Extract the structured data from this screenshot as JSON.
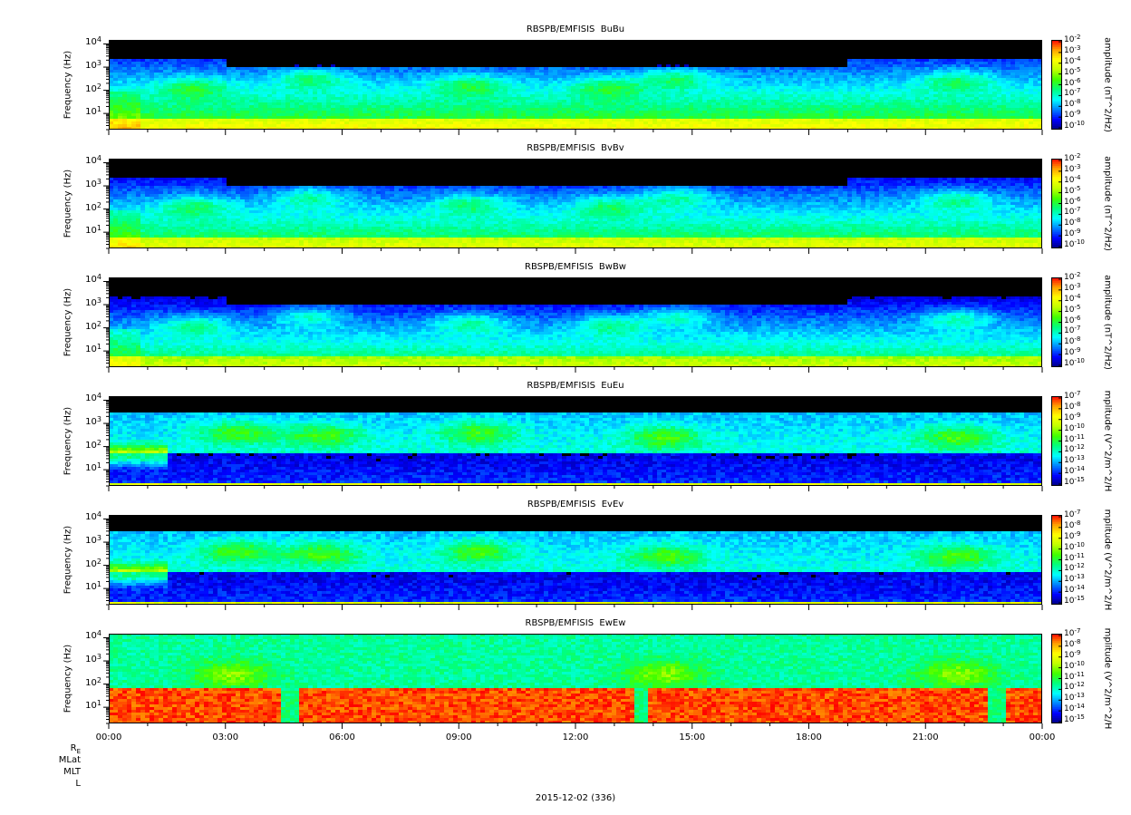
{
  "chart_data": [
    {
      "type": "heatmap",
      "title": "RBSPB/EMFISIS  BuBu",
      "ylabel": "Frequency (Hz)",
      "yscale": "log",
      "ylim": [
        2,
        15000
      ],
      "yticks": [
        {
          "base": "10",
          "exp": "1"
        },
        {
          "base": "10",
          "exp": "2"
        },
        {
          "base": "10",
          "exp": "3"
        },
        {
          "base": "10",
          "exp": "4"
        }
      ],
      "zlabel": "amplitude (nT^2/Hz)",
      "zscale": "log",
      "zticks": [
        "-2",
        "-3",
        "-4",
        "-5",
        "-6",
        "-7",
        "-8",
        "-9",
        "-10"
      ],
      "zlim_exp": [
        -10,
        -2
      ]
    },
    {
      "type": "heatmap",
      "title": "RBSPB/EMFISIS  BvBv",
      "ylabel": "Frequency (Hz)",
      "yscale": "log",
      "ylim": [
        2,
        15000
      ],
      "yticks": [
        {
          "base": "10",
          "exp": "1"
        },
        {
          "base": "10",
          "exp": "2"
        },
        {
          "base": "10",
          "exp": "3"
        },
        {
          "base": "10",
          "exp": "4"
        }
      ],
      "zlabel": "amplitude (nT^2/Hz)",
      "zscale": "log",
      "zticks": [
        "-2",
        "-3",
        "-4",
        "-5",
        "-6",
        "-7",
        "-8",
        "-9",
        "-10"
      ],
      "zlim_exp": [
        -10,
        -2
      ]
    },
    {
      "type": "heatmap",
      "title": "RBSPB/EMFISIS  BwBw",
      "ylabel": "Frequency (Hz)",
      "yscale": "log",
      "ylim": [
        2,
        15000
      ],
      "yticks": [
        {
          "base": "10",
          "exp": "1"
        },
        {
          "base": "10",
          "exp": "2"
        },
        {
          "base": "10",
          "exp": "3"
        },
        {
          "base": "10",
          "exp": "4"
        }
      ],
      "zlabel": "amplitude (nT^2/Hz)",
      "zscale": "log",
      "zticks": [
        "-2",
        "-3",
        "-4",
        "-5",
        "-6",
        "-7",
        "-8",
        "-9",
        "-10"
      ],
      "zlim_exp": [
        -10,
        -2
      ]
    },
    {
      "type": "heatmap",
      "title": "RBSPB/EMFISIS  EuEu",
      "ylabel": "Frequency (Hz)",
      "yscale": "log",
      "ylim": [
        2,
        15000
      ],
      "yticks": [
        {
          "base": "10",
          "exp": "1"
        },
        {
          "base": "10",
          "exp": "2"
        },
        {
          "base": "10",
          "exp": "3"
        },
        {
          "base": "10",
          "exp": "4"
        }
      ],
      "zlabel": "mplitude (V^2/m^2/H",
      "zscale": "log",
      "zticks": [
        "-7",
        "-8",
        "-9",
        "-10",
        "-11",
        "-12",
        "-13",
        "-14",
        "-15"
      ],
      "zlim_exp": [
        -15,
        -7
      ]
    },
    {
      "type": "heatmap",
      "title": "RBSPB/EMFISIS  EvEv",
      "ylabel": "Frequency (Hz)",
      "yscale": "log",
      "ylim": [
        2,
        15000
      ],
      "yticks": [
        {
          "base": "10",
          "exp": "1"
        },
        {
          "base": "10",
          "exp": "2"
        },
        {
          "base": "10",
          "exp": "3"
        },
        {
          "base": "10",
          "exp": "4"
        }
      ],
      "zlabel": "mplitude (V^2/m^2/H",
      "zscale": "log",
      "zticks": [
        "-7",
        "-8",
        "-9",
        "-10",
        "-11",
        "-12",
        "-13",
        "-14",
        "-15"
      ],
      "zlim_exp": [
        -15,
        -7
      ]
    },
    {
      "type": "heatmap",
      "title": "RBSPB/EMFISIS  EwEw",
      "ylabel": "Frequency (Hz)",
      "yscale": "log",
      "ylim": [
        2,
        15000
      ],
      "yticks": [
        {
          "base": "10",
          "exp": "1"
        },
        {
          "base": "10",
          "exp": "2"
        },
        {
          "base": "10",
          "exp": "3"
        },
        {
          "base": "10",
          "exp": "4"
        }
      ],
      "zlabel": "mplitude (V^2/m^2/H",
      "zscale": "log",
      "zticks": [
        "-7",
        "-8",
        "-9",
        "-10",
        "-11",
        "-12",
        "-13",
        "-14",
        "-15"
      ],
      "zlim_exp": [
        -15,
        -7
      ]
    }
  ],
  "xaxis": {
    "ticks": [
      "00:00",
      "03:00",
      "06:00",
      "09:00",
      "12:00",
      "15:00",
      "18:00",
      "21:00",
      "00:00"
    ],
    "range_hours": [
      0,
      24
    ],
    "date_label": "2015-12-02 (336)"
  },
  "ephemeris_labels": [
    "R",
    "MLat",
    "MLT",
    "L"
  ],
  "ephemeris_subscript": "E",
  "colormap": [
    "#00007f",
    "#0000ff",
    "#0080ff",
    "#00ffff",
    "#00ff80",
    "#40ff00",
    "#c0ff00",
    "#ffff00",
    "#ffa000",
    "#ff0000"
  ]
}
